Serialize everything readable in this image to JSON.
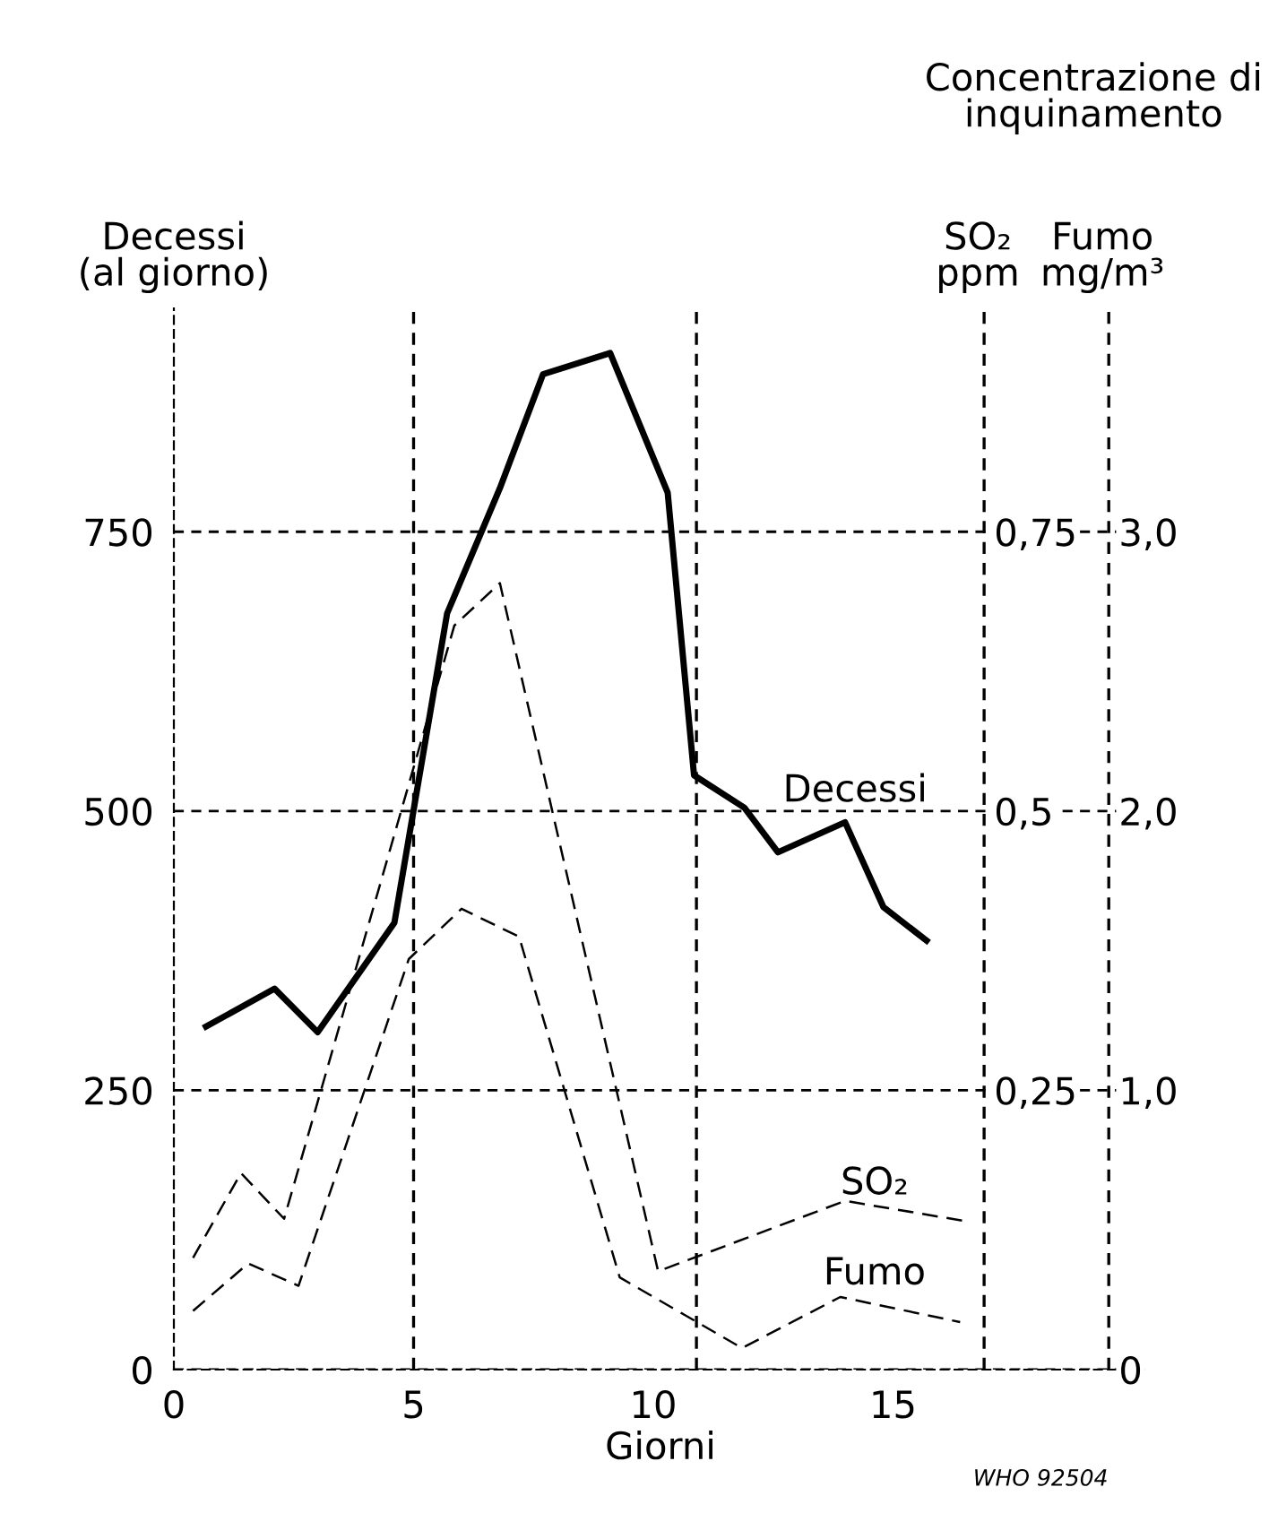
{
  "chart_data": {
    "type": "line",
    "xlabel": "Giorni",
    "ylabel": "Decessi\n(al giorno)",
    "y2label": "SO₂\nppm",
    "y3label": "Fumo\nmg/m³",
    "annotations": [
      "Concentrazione di\ninquinamento",
      "WHO 92504"
    ],
    "xlim": [
      0,
      20.3
    ],
    "xticks": [
      0,
      5,
      10,
      15
    ],
    "ylim": [
      0,
      950
    ],
    "yticks": [
      0,
      250,
      500,
      750
    ],
    "y2lim": [
      0,
      0.95
    ],
    "y2ticks": [
      {
        "value": 0.25,
        "label": "0,25"
      },
      {
        "value": 0.5,
        "label": "0,5"
      },
      {
        "value": 0.75,
        "label": "0,75"
      }
    ],
    "y3lim": [
      0,
      3.8
    ],
    "y3ticks": [
      {
        "value": 0,
        "label": "0"
      },
      {
        "value": 1,
        "label": "1,0"
      },
      {
        "value": 2,
        "label": "2,0"
      },
      {
        "value": 3,
        "label": "3,0"
      }
    ],
    "grid": "y",
    "ref_lines": [
      {
        "axis": "x",
        "value": 5,
        "line_style": "dashed"
      },
      {
        "axis": "x",
        "value": 10.9,
        "line_style": "dashed"
      },
      {
        "axis": "x",
        "value": 16.9,
        "line_style": "dashed"
      },
      {
        "axis": "x",
        "value": 19.5,
        "line_style": "dashed"
      }
    ],
    "series": [
      {
        "name": "Decessi",
        "color": "#000000",
        "line_style": "solid",
        "x": [
          0.67,
          2.1,
          3.0,
          4.6,
          5.7,
          6.8,
          7.7,
          9.1,
          10.3,
          10.85,
          11.9,
          12.6,
          14.0,
          14.8,
          15.7
        ],
        "values": [
          307,
          341,
          302,
          400,
          677,
          789,
          891,
          910,
          785,
          532,
          503,
          463,
          490,
          414,
          384
        ]
      },
      {
        "name": "SO₂",
        "color": "#000000",
        "line_style": "dashed",
        "axis": "y2",
        "x": [
          0.4,
          1.4,
          2.3,
          5.85,
          6.8,
          10.1,
          14.0,
          16.5
        ],
        "values": [
          0.1,
          0.176,
          0.135,
          0.666,
          0.704,
          0.088,
          0.151,
          0.133
        ]
      },
      {
        "name": "Fumo",
        "color": "#000000",
        "line_style": "dashed",
        "axis": "y3",
        "x": [
          0.4,
          1.55,
          2.6,
          4.9,
          6.0,
          7.2,
          9.3,
          11.85,
          13.9,
          16.4
        ],
        "values": [
          0.21,
          0.38,
          0.3,
          1.47,
          1.65,
          1.55,
          0.33,
          0.077,
          0.26,
          0.17
        ]
      }
    ]
  }
}
